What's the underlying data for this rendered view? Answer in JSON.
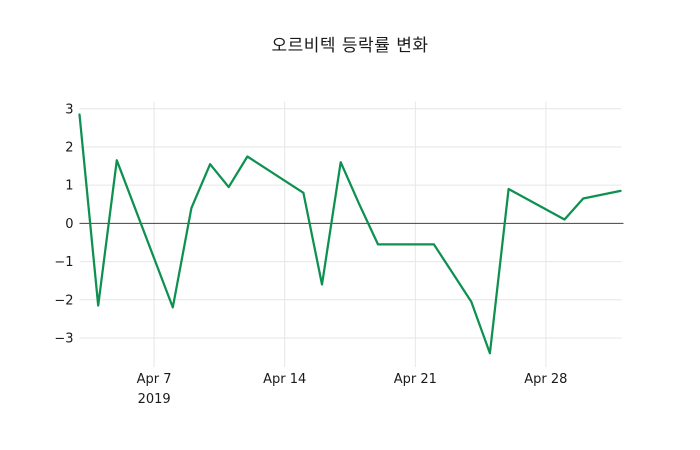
{
  "title": "오르비텍 등락률 변화",
  "colors": {
    "line": "#0e9150",
    "grid": "#e6e6e6",
    "zero_line": "#424242",
    "text": "#1a1a1a",
    "background": "#ffffff"
  },
  "chart_data": {
    "type": "line",
    "title": "오르비텍 등락률 변화",
    "legend": "none",
    "grid": true,
    "xlim": [
      "2019-04-03",
      "2019-05-02"
    ],
    "ylim": [
      -3.76,
      3.19
    ],
    "y_ticks": [
      3,
      2,
      1,
      0,
      -1,
      -2,
      -3
    ],
    "x_ticks": [
      {
        "date": "2019-04-07",
        "lines": [
          "Apr 7",
          "2019"
        ]
      },
      {
        "date": "2019-04-14",
        "lines": [
          "Apr 14"
        ]
      },
      {
        "date": "2019-04-21",
        "lines": [
          "Apr 21"
        ]
      },
      {
        "date": "2019-04-28",
        "lines": [
          "Apr 28"
        ]
      }
    ],
    "zero_line": true,
    "series": [
      {
        "name": "오르비텍 등락률",
        "points": [
          {
            "date": "2019-04-03",
            "value": 2.85
          },
          {
            "date": "2019-04-04",
            "value": -2.15
          },
          {
            "date": "2019-04-05",
            "value": 1.65
          },
          {
            "date": "2019-04-08",
            "value": -2.2
          },
          {
            "date": "2019-04-09",
            "value": 0.4
          },
          {
            "date": "2019-04-10",
            "value": 1.55
          },
          {
            "date": "2019-04-11",
            "value": 0.95
          },
          {
            "date": "2019-04-12",
            "value": 1.75
          },
          {
            "date": "2019-04-15",
            "value": 0.8
          },
          {
            "date": "2019-04-16",
            "value": -1.6
          },
          {
            "date": "2019-04-17",
            "value": 1.6
          },
          {
            "date": "2019-04-18",
            "value": 0.5
          },
          {
            "date": "2019-04-19",
            "value": -0.55
          },
          {
            "date": "2019-04-22",
            "value": -0.55
          },
          {
            "date": "2019-04-23",
            "value": -1.3
          },
          {
            "date": "2019-04-24",
            "value": -2.05
          },
          {
            "date": "2019-04-25",
            "value": -3.4
          },
          {
            "date": "2019-04-26",
            "value": 0.9
          },
          {
            "date": "2019-04-29",
            "value": 0.1
          },
          {
            "date": "2019-04-30",
            "value": 0.65
          },
          {
            "date": "2019-05-02",
            "value": 0.85
          }
        ]
      }
    ]
  }
}
